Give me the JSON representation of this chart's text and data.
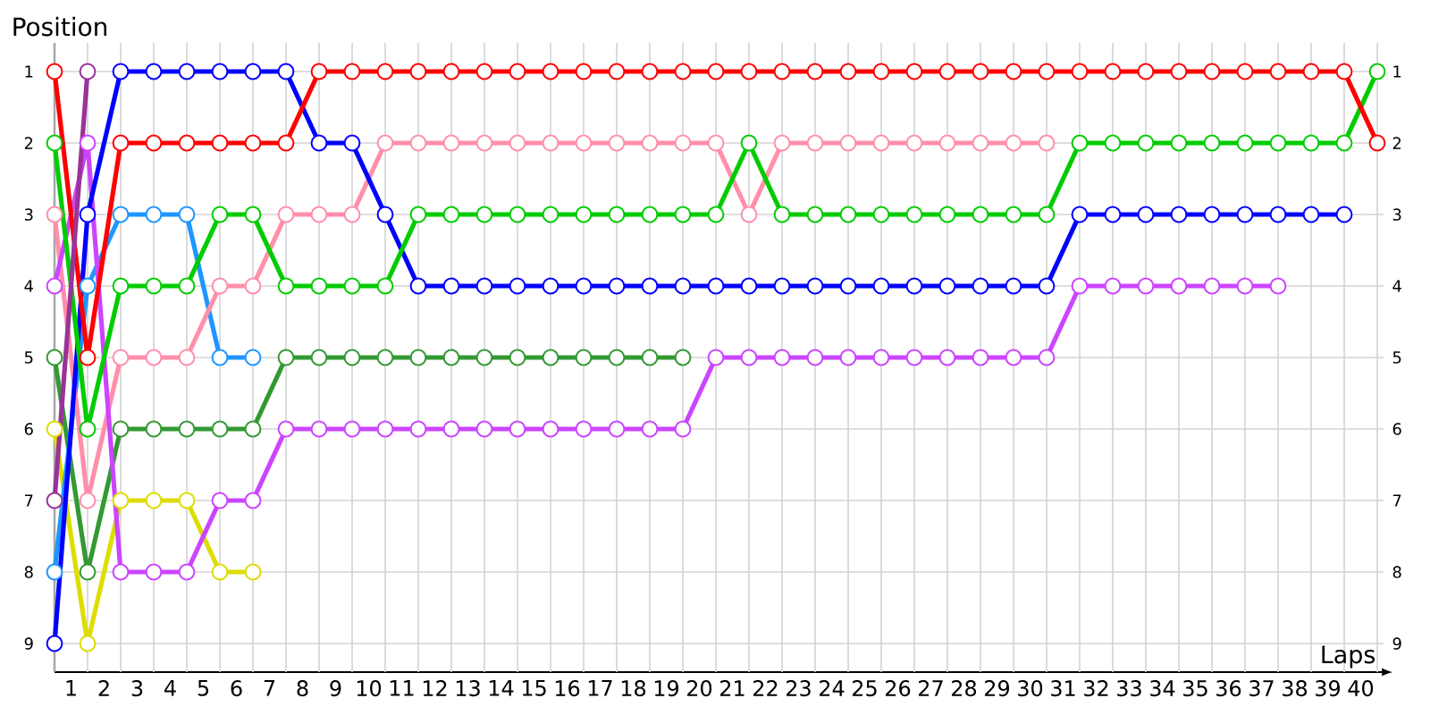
{
  "chart_data": {
    "type": "line",
    "xlabel": "Laps",
    "ylabel": "Position",
    "x": [
      0,
      1,
      2,
      3,
      4,
      5,
      6,
      7,
      8,
      9,
      10,
      11,
      12,
      13,
      14,
      15,
      16,
      17,
      18,
      19,
      20,
      21,
      22,
      23,
      24,
      25,
      26,
      27,
      28,
      29,
      30,
      31,
      32,
      33,
      34,
      35,
      36,
      37,
      38,
      39,
      40
    ],
    "xlim": [
      0,
      40.2
    ],
    "xticks": [
      {
        "value": 0.5,
        "label": "1"
      },
      {
        "value": 1.5,
        "label": "2"
      },
      {
        "value": 2.5,
        "label": "3"
      },
      {
        "value": 3.5,
        "label": "4"
      },
      {
        "value": 4.5,
        "label": "5"
      },
      {
        "value": 5.5,
        "label": "6"
      },
      {
        "value": 6.5,
        "label": "7"
      },
      {
        "value": 7.5,
        "label": "8"
      },
      {
        "value": 8.5,
        "label": "9"
      },
      {
        "value": 9.5,
        "label": "10"
      },
      {
        "value": 10.5,
        "label": "11"
      },
      {
        "value": 11.5,
        "label": "12"
      },
      {
        "value": 12.5,
        "label": "13"
      },
      {
        "value": 13.5,
        "label": "14"
      },
      {
        "value": 14.5,
        "label": "15"
      },
      {
        "value": 15.5,
        "label": "16"
      },
      {
        "value": 16.5,
        "label": "17"
      },
      {
        "value": 17.5,
        "label": "18"
      },
      {
        "value": 18.5,
        "label": "19"
      },
      {
        "value": 19.5,
        "label": "20"
      },
      {
        "value": 20.5,
        "label": "21"
      },
      {
        "value": 21.5,
        "label": "22"
      },
      {
        "value": 22.5,
        "label": "23"
      },
      {
        "value": 23.5,
        "label": "24"
      },
      {
        "value": 24.5,
        "label": "25"
      },
      {
        "value": 25.5,
        "label": "26"
      },
      {
        "value": 26.5,
        "label": "27"
      },
      {
        "value": 27.5,
        "label": "28"
      },
      {
        "value": 28.5,
        "label": "29"
      },
      {
        "value": 29.5,
        "label": "30"
      },
      {
        "value": 30.5,
        "label": "31"
      },
      {
        "value": 31.5,
        "label": "32"
      },
      {
        "value": 32.5,
        "label": "33"
      },
      {
        "value": 33.5,
        "label": "34"
      },
      {
        "value": 34.5,
        "label": "35"
      },
      {
        "value": 35.5,
        "label": "36"
      },
      {
        "value": 36.5,
        "label": "37"
      },
      {
        "value": 37.5,
        "label": "38"
      },
      {
        "value": 38.5,
        "label": "39"
      },
      {
        "value": 39.5,
        "label": "40"
      }
    ],
    "ylim": [
      9.4,
      0.6
    ],
    "yticks": [
      1,
      2,
      3,
      4,
      5,
      6,
      7,
      8,
      9
    ],
    "y2lim": [
      9.4,
      0.6
    ],
    "y2ticks": [
      1,
      2,
      3,
      4,
      5,
      6,
      7,
      8,
      9
    ],
    "grid": true,
    "marker": "circle",
    "line_style": "solid",
    "series": [
      {
        "color": "#dddd00",
        "values": [
          6,
          9,
          7,
          7,
          7,
          8,
          8,
          null,
          null,
          null,
          null,
          null,
          null,
          null,
          null,
          null,
          null,
          null,
          null,
          null,
          null,
          null,
          null,
          null,
          null,
          null,
          null,
          null,
          null,
          null,
          null,
          null,
          null,
          null,
          null,
          null,
          null,
          null,
          null,
          null,
          null
        ]
      },
      {
        "color": "#339933",
        "values": [
          5,
          8,
          6,
          6,
          6,
          6,
          6,
          5,
          5,
          5,
          5,
          5,
          5,
          5,
          5,
          5,
          5,
          5,
          5,
          5,
          null,
          null,
          null,
          null,
          null,
          null,
          null,
          null,
          null,
          null,
          null,
          null,
          null,
          null,
          null,
          null,
          null,
          null,
          null,
          null,
          null
        ]
      },
      {
        "color": "#1e96ff",
        "values": [
          8,
          4,
          3,
          3,
          3,
          5,
          5,
          null,
          null,
          null,
          null,
          null,
          null,
          null,
          null,
          null,
          null,
          null,
          null,
          null,
          null,
          null,
          null,
          null,
          null,
          null,
          null,
          null,
          null,
          null,
          null,
          null,
          null,
          null,
          null,
          null,
          null,
          null,
          null,
          null,
          null
        ]
      },
      {
        "color": "#ff8fab",
        "values": [
          3,
          7,
          5,
          5,
          5,
          4,
          4,
          3,
          3,
          3,
          2,
          2,
          2,
          2,
          2,
          2,
          2,
          2,
          2,
          2,
          2,
          3,
          2,
          2,
          2,
          2,
          2,
          2,
          2,
          2,
          2,
          null,
          null,
          null,
          null,
          null,
          null,
          null,
          null,
          null,
          null
        ]
      },
      {
        "color": "#cc44ff",
        "values": [
          4,
          2,
          8,
          8,
          8,
          7,
          7,
          6,
          6,
          6,
          6,
          6,
          6,
          6,
          6,
          6,
          6,
          6,
          6,
          6,
          5,
          5,
          5,
          5,
          5,
          5,
          5,
          5,
          5,
          5,
          5,
          4,
          4,
          4,
          4,
          4,
          4,
          4,
          null,
          null,
          null
        ]
      },
      {
        "color": "#0000ff",
        "values": [
          9,
          3,
          1,
          1,
          1,
          1,
          1,
          1,
          2,
          2,
          3,
          4,
          4,
          4,
          4,
          4,
          4,
          4,
          4,
          4,
          4,
          4,
          4,
          4,
          4,
          4,
          4,
          4,
          4,
          4,
          4,
          3,
          3,
          3,
          3,
          3,
          3,
          3,
          3,
          3,
          null
        ]
      },
      {
        "color": "#00cc00",
        "values": [
          2,
          6,
          4,
          4,
          4,
          3,
          3,
          4,
          4,
          4,
          4,
          3,
          3,
          3,
          3,
          3,
          3,
          3,
          3,
          3,
          3,
          2,
          3,
          3,
          3,
          3,
          3,
          3,
          3,
          3,
          3,
          2,
          2,
          2,
          2,
          2,
          2,
          2,
          2,
          2,
          1
        ]
      },
      {
        "color": "#ff0000",
        "values": [
          1,
          5,
          2,
          2,
          2,
          2,
          2,
          2,
          1,
          1,
          1,
          1,
          1,
          1,
          1,
          1,
          1,
          1,
          1,
          1,
          1,
          1,
          1,
          1,
          1,
          1,
          1,
          1,
          1,
          1,
          1,
          1,
          1,
          1,
          1,
          1,
          1,
          1,
          1,
          1,
          2
        ]
      },
      {
        "color": "#993399",
        "values": [
          7,
          1,
          null,
          null,
          null,
          null,
          null,
          null,
          null,
          null,
          null,
          null,
          null,
          null,
          null,
          null,
          null,
          null,
          null,
          null,
          null,
          null,
          null,
          null,
          null,
          null,
          null,
          null,
          null,
          null,
          null,
          null,
          null,
          null,
          null,
          null,
          null,
          null,
          null,
          null,
          null
        ]
      }
    ]
  }
}
